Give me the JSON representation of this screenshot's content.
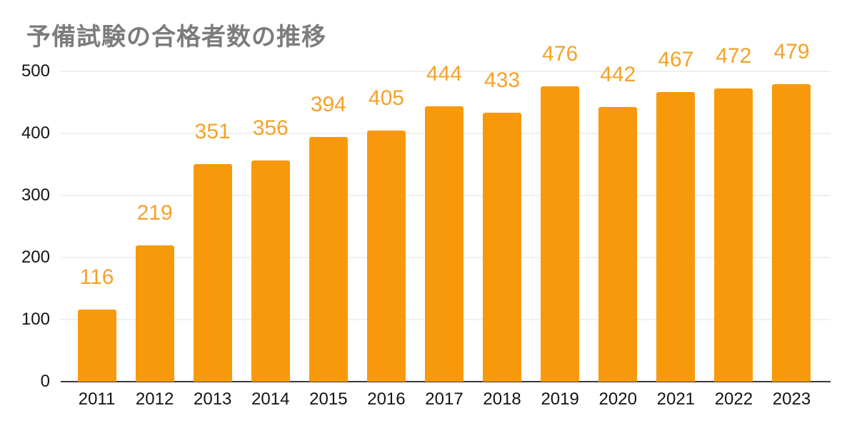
{
  "chart_data": {
    "type": "bar",
    "title": "予備試験の合格者数の推移",
    "categories": [
      "2011",
      "2012",
      "2013",
      "2014",
      "2015",
      "2016",
      "2017",
      "2018",
      "2019",
      "2020",
      "2021",
      "2022",
      "2023"
    ],
    "values": [
      116,
      219,
      351,
      356,
      394,
      405,
      444,
      433,
      476,
      442,
      467,
      472,
      479
    ],
    "xlabel": "",
    "ylabel": "",
    "ylim": [
      0,
      500
    ],
    "yticks": [
      0,
      100,
      200,
      300,
      400,
      500
    ],
    "grid": true,
    "legend": "none",
    "value_labels_shown": true,
    "colors": {
      "bar": "#F8990B",
      "value_label": "#F4A226",
      "title": "#7C7C7C",
      "axis_label": "#141414",
      "gridline": "#E2E2E2",
      "axis_line": "#3A3A3A",
      "background": "#FFFFFF"
    }
  }
}
